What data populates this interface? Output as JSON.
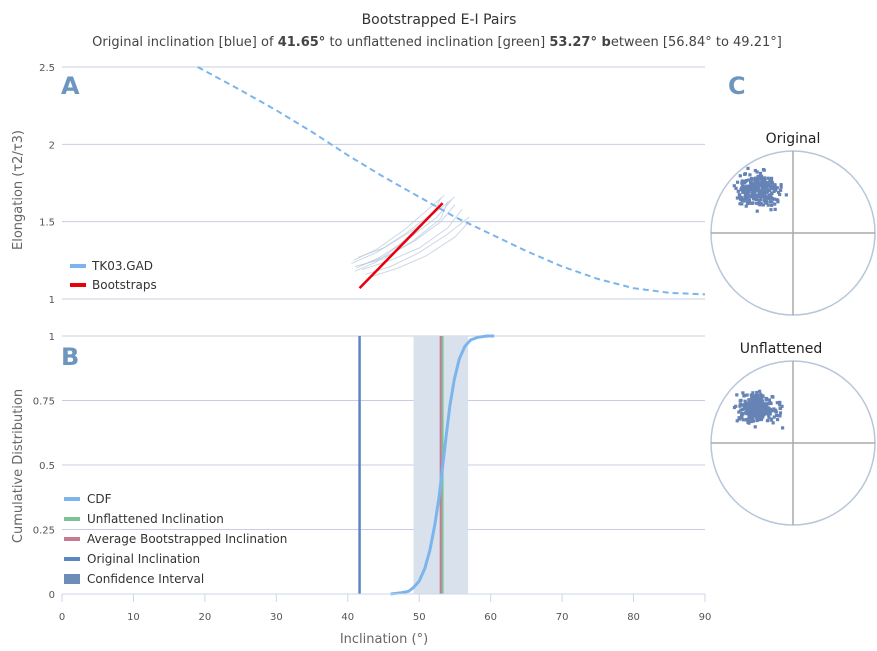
{
  "title": "Bootstrapped E-I Pairs",
  "subtitle": {
    "p1": "Original inclination [blue] of ",
    "orig": "41.65°",
    "p2": " to unflattened inclination [green] ",
    "unfl": "53.27°",
    "p3_bold": " b",
    "p3": "etween [56.84° to 49.21°]"
  },
  "panels": {
    "a": "A",
    "b": "B",
    "c": "C"
  },
  "colors": {
    "cdf": "#7cb5ec",
    "tk03": "#7cb5ec",
    "bootstraps": "#e8000b",
    "unflattened": "#7cc496",
    "average": "#c57a96",
    "original": "#5b87c0",
    "confidence": "#d9e1ec",
    "panel_label": "#6d96bf",
    "points": "#6683b5",
    "grid": "#c8cde0",
    "axis": "#ccd6eb"
  },
  "chart_data": [
    {
      "id": "A",
      "type": "line",
      "ylabel": "Elongation (τ2/τ3)",
      "ylim": [
        1,
        2.5
      ],
      "xlim": [
        0,
        90
      ],
      "yticks": [
        "1",
        "1.5",
        "2",
        "2.5"
      ],
      "legend": [
        "TK03.GAD",
        "Bootstraps"
      ],
      "series": [
        {
          "name": "TK03.GAD",
          "style": "dashed",
          "x": [
            0,
            19,
            25,
            30,
            35,
            40,
            45,
            50,
            55,
            60,
            65,
            70,
            75,
            80,
            85,
            90
          ],
          "y": [
            2.99,
            2.5,
            2.35,
            2.22,
            2.08,
            1.93,
            1.79,
            1.66,
            1.53,
            1.42,
            1.31,
            1.21,
            1.13,
            1.07,
            1.04,
            1.03
          ]
        },
        {
          "name": "Bootstraps",
          "x": [
            41.65,
            53.27
          ],
          "y": [
            1.07,
            1.62
          ]
        }
      ],
      "bootstrap_curves": [
        {
          "x": [
            41,
            45,
            49,
            53,
            54
          ],
          "y": [
            1.21,
            1.26,
            1.37,
            1.52,
            1.63
          ]
        },
        {
          "x": [
            40.5,
            44,
            48,
            52,
            53
          ],
          "y": [
            1.23,
            1.3,
            1.42,
            1.56,
            1.65
          ]
        },
        {
          "x": [
            42,
            46,
            50,
            54,
            56
          ],
          "y": [
            1.19,
            1.25,
            1.33,
            1.46,
            1.58
          ]
        },
        {
          "x": [
            41.5,
            45,
            49,
            52,
            55
          ],
          "y": [
            1.27,
            1.33,
            1.44,
            1.55,
            1.66
          ]
        },
        {
          "x": [
            42.5,
            46,
            50,
            54,
            57
          ],
          "y": [
            1.16,
            1.21,
            1.3,
            1.42,
            1.53
          ]
        },
        {
          "x": [
            41,
            44,
            47,
            50,
            53
          ],
          "y": [
            1.18,
            1.24,
            1.34,
            1.47,
            1.6
          ]
        },
        {
          "x": [
            43,
            47,
            51,
            55,
            57
          ],
          "y": [
            1.14,
            1.2,
            1.28,
            1.4,
            1.5
          ]
        },
        {
          "x": [
            40.8,
            44,
            48,
            51,
            53.5
          ],
          "y": [
            1.25,
            1.32,
            1.45,
            1.57,
            1.67
          ]
        },
        {
          "x": [
            42,
            45.5,
            49.5,
            53,
            55
          ],
          "y": [
            1.22,
            1.28,
            1.38,
            1.5,
            1.61
          ]
        },
        {
          "x": [
            41.2,
            44.5,
            48.5,
            52.5,
            54.5
          ],
          "y": [
            1.2,
            1.27,
            1.39,
            1.53,
            1.64
          ]
        }
      ]
    },
    {
      "id": "B",
      "type": "line",
      "ylabel": "Cumulative Distribution",
      "xlabel": "Inclination (°)",
      "ylim": [
        0,
        1
      ],
      "xlim": [
        0,
        90
      ],
      "xticks": [
        "0",
        "10",
        "20",
        "30",
        "40",
        "50",
        "60",
        "70",
        "80",
        "90"
      ],
      "yticks": [
        "0",
        "0.25",
        "0.5",
        "0.75",
        "1"
      ],
      "legend": [
        "CDF",
        "Unflattened Inclination",
        "Average Bootstrapped Inclination",
        "Original Inclination",
        "Confidence Interval"
      ],
      "series": [
        {
          "name": "CDF",
          "x": [
            46,
            47.5,
            48.5,
            49.2,
            50,
            50.8,
            51.5,
            52.2,
            52.8,
            53.3,
            53.8,
            54.3,
            54.9,
            55.6,
            56.4,
            57.2,
            58.2,
            59.5,
            60.5
          ],
          "y": [
            0,
            0.005,
            0.01,
            0.025,
            0.05,
            0.1,
            0.17,
            0.27,
            0.38,
            0.5,
            0.62,
            0.73,
            0.83,
            0.91,
            0.96,
            0.985,
            0.995,
            1,
            1
          ]
        }
      ],
      "unflattened": 53.27,
      "average": 53.0,
      "original": 41.65,
      "confidence_interval": [
        49.21,
        56.84
      ]
    },
    {
      "id": "C",
      "type": "scatter",
      "plots": [
        "Original",
        "Unflattened"
      ]
    }
  ]
}
